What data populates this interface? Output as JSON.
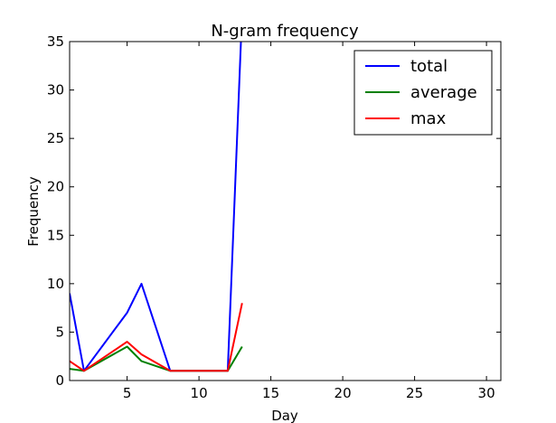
{
  "chart_data": {
    "type": "line",
    "title": "N-gram frequency",
    "xlabel": "Day",
    "ylabel": "Frequency",
    "xlim": [
      1,
      31
    ],
    "ylim": [
      0,
      35
    ],
    "xticks": [
      5,
      10,
      15,
      20,
      25,
      30
    ],
    "yticks": [
      0,
      5,
      10,
      15,
      20,
      25,
      30,
      35
    ],
    "grid": false,
    "legend_position": "top-right",
    "series": [
      {
        "name": "total",
        "color": "#0000ff",
        "x": [
          1,
          2,
          5,
          6,
          8,
          12,
          13
        ],
        "y": [
          9,
          1,
          7,
          10,
          1,
          1,
          38
        ]
      },
      {
        "name": "average",
        "color": "#008000",
        "x": [
          1,
          2,
          5,
          6,
          8,
          12,
          13
        ],
        "y": [
          1.2,
          1,
          3.5,
          2,
          1,
          1,
          3.5
        ]
      },
      {
        "name": "max",
        "color": "#ff0000",
        "x": [
          1,
          2,
          5,
          6,
          8,
          12,
          13
        ],
        "y": [
          2,
          1,
          4,
          2.7,
          1,
          1,
          8
        ]
      }
    ]
  }
}
